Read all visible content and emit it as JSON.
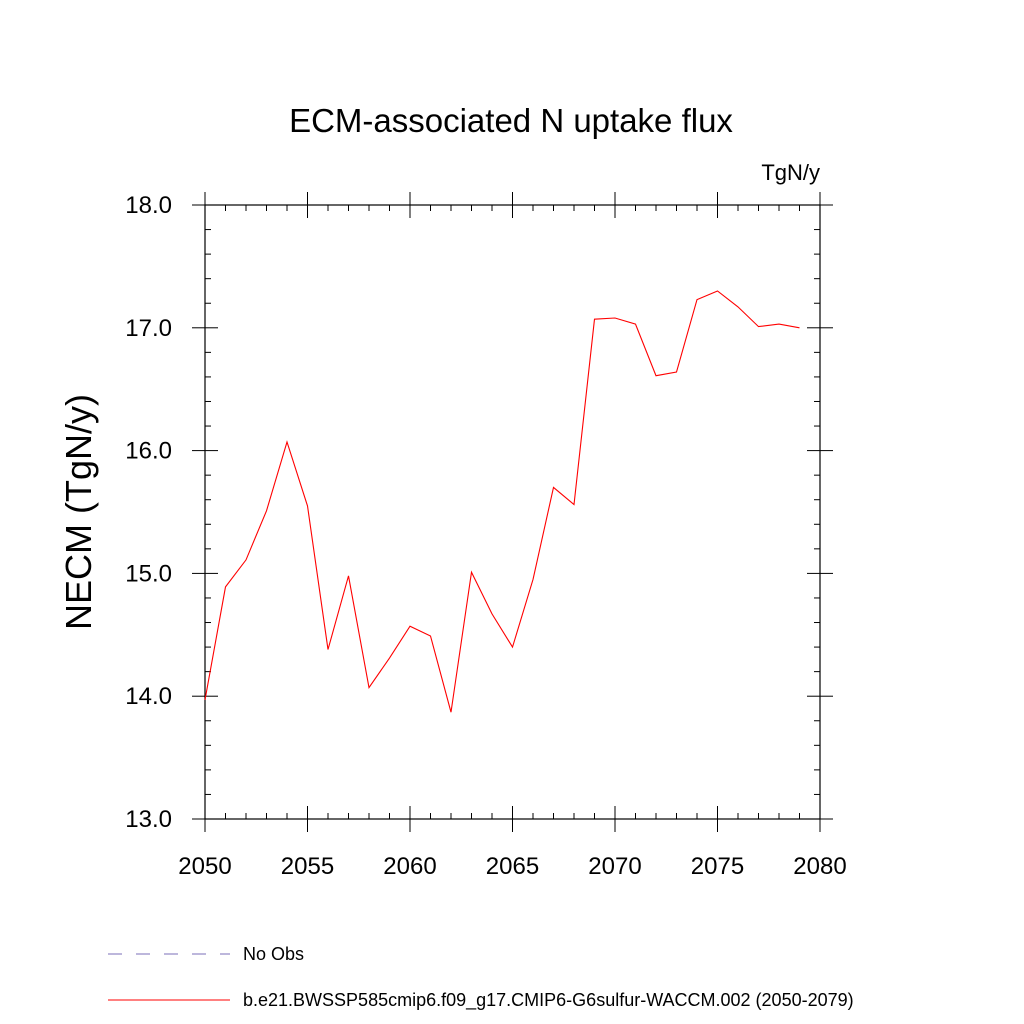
{
  "chart_data": {
    "type": "line",
    "title": "ECM-associated N uptake flux",
    "units": "TgN/y",
    "ylabel": "NECM  (TgN/y)",
    "xlabel": "",
    "xlim": [
      2050,
      2080
    ],
    "ylim": [
      13.0,
      18.0
    ],
    "x_ticks": [
      2050,
      2055,
      2060,
      2065,
      2070,
      2075,
      2080
    ],
    "x_tick_labels": [
      "2050",
      "2055",
      "2060",
      "2065",
      "2070",
      "2075",
      "2080"
    ],
    "y_ticks": [
      13.0,
      14.0,
      15.0,
      16.0,
      17.0,
      18.0
    ],
    "y_tick_labels": [
      "13.0",
      "14.0",
      "15.0",
      "16.0",
      "17.0",
      "18.0"
    ],
    "grid": false,
    "legend_position": "bottom",
    "series": [
      {
        "name": "b.e21.BWSSP585cmip6.f09_g17.CMIP6-G6sulfur-WACCM.002 (2050-2079)",
        "color": "#ff0000",
        "style": "solid",
        "x": [
          2050,
          2051,
          2052,
          2053,
          2054,
          2055,
          2056,
          2057,
          2058,
          2059,
          2060,
          2061,
          2062,
          2063,
          2064,
          2065,
          2066,
          2067,
          2068,
          2069,
          2070,
          2071,
          2072,
          2073,
          2074,
          2075,
          2076,
          2077,
          2078,
          2079
        ],
        "y": [
          13.97,
          14.89,
          15.11,
          15.51,
          16.07,
          15.55,
          14.38,
          14.98,
          14.07,
          14.31,
          14.57,
          14.49,
          13.87,
          15.01,
          14.67,
          14.4,
          14.95,
          15.7,
          15.56,
          17.07,
          17.08,
          17.03,
          16.61,
          16.64,
          17.23,
          17.3,
          17.17,
          17.01,
          17.03,
          17.0
        ]
      }
    ],
    "legend": [
      {
        "label": "No Obs",
        "color": "#7b6fb8",
        "style": "dashed"
      },
      {
        "label": "b.e21.BWSSP585cmip6.f09_g17.CMIP6-G6sulfur-WACCM.002 (2050-2079)",
        "color": "#ff0000",
        "style": "solid"
      }
    ]
  }
}
